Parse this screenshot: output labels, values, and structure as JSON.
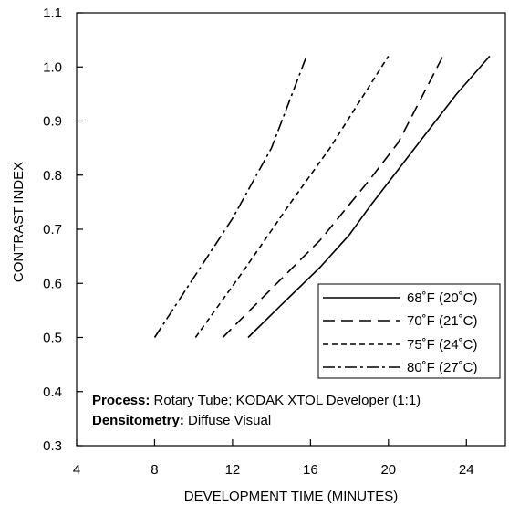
{
  "chart_data": {
    "type": "line",
    "xlabel": "DEVELOPMENT TIME (MINUTES)",
    "ylabel": "CONTRAST INDEX",
    "xlim": [
      4,
      26
    ],
    "ylim": [
      0.3,
      1.1
    ],
    "xticks": [
      "4",
      "8",
      "12",
      "16",
      "20",
      "24"
    ],
    "yticks": [
      "0.3",
      "0.4",
      "0.5",
      "0.6",
      "0.7",
      "0.8",
      "0.9",
      "1.0",
      "1.1"
    ],
    "grid": false,
    "legend_position": "lower-right",
    "series": [
      {
        "name": "68˚F (20˚C)",
        "dash": "solid",
        "points": [
          [
            12.8,
            0.5
          ],
          [
            14.5,
            0.56
          ],
          [
            16.5,
            0.63
          ],
          [
            18.0,
            0.69
          ],
          [
            19.0,
            0.74
          ],
          [
            20.5,
            0.81
          ],
          [
            22.0,
            0.88
          ],
          [
            23.5,
            0.95
          ],
          [
            25.2,
            1.02
          ]
        ]
      },
      {
        "name": "70˚F (21˚C)",
        "dash": "long-dash",
        "points": [
          [
            11.5,
            0.5
          ],
          [
            14.0,
            0.59
          ],
          [
            16.5,
            0.68
          ],
          [
            19.0,
            0.79
          ],
          [
            20.5,
            0.86
          ],
          [
            22.8,
            1.02
          ]
        ]
      },
      {
        "name": "75˚F (24˚C)",
        "dash": "short-dash",
        "points": [
          [
            10.1,
            0.5
          ],
          [
            12.5,
            0.62
          ],
          [
            15.0,
            0.75
          ],
          [
            17.0,
            0.85
          ],
          [
            20.0,
            1.02
          ]
        ]
      },
      {
        "name": "80˚F (27˚C)",
        "dash": "dash-dot",
        "points": [
          [
            8.0,
            0.5
          ],
          [
            10.0,
            0.61
          ],
          [
            12.0,
            0.72
          ],
          [
            14.0,
            0.85
          ],
          [
            15.8,
            1.02
          ]
        ]
      }
    ],
    "annotations": {
      "process_label": "Process:",
      "process_value": " Rotary Tube; KODAK XTOL Developer (1:1)",
      "densitometry_label": "Densitometry:",
      "densitometry_value": " Diffuse Visual"
    }
  }
}
